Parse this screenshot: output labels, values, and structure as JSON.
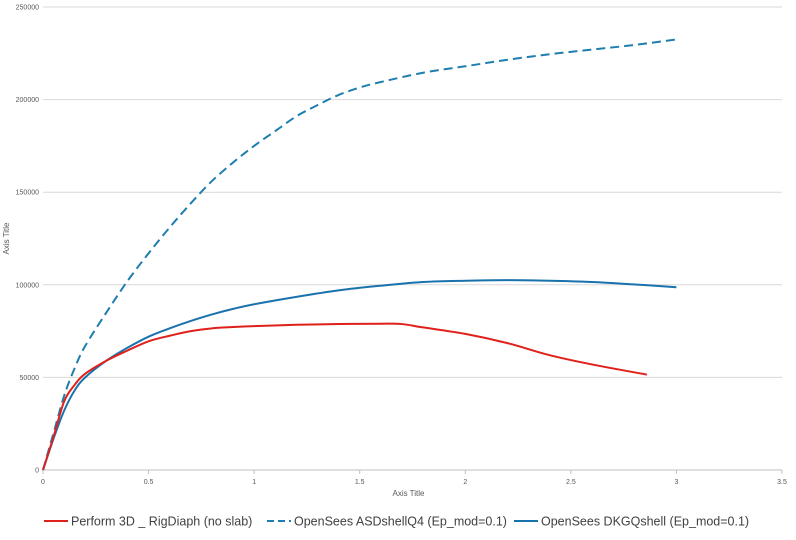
{
  "chart_data": {
    "type": "line",
    "title": "",
    "xlabel": "Axis Title",
    "ylabel": "Axis Title",
    "xlim": [
      0,
      3.5
    ],
    "ylim": [
      0,
      250000
    ],
    "xticks": [
      0,
      0.5,
      1,
      1.5,
      2,
      2.5,
      3,
      3.5
    ],
    "xtick_labels": [
      "0",
      "0.5",
      "1",
      "1.5",
      "2",
      "2.5",
      "3",
      "3.5"
    ],
    "yticks": [
      0,
      50000,
      100000,
      150000,
      200000,
      250000
    ],
    "ytick_labels": [
      "0",
      "50000",
      "100000",
      "150000",
      "200000",
      "250000"
    ],
    "grid": "horizontal",
    "legend_position": "bottom",
    "series": [
      {
        "name": "Perform 3D _ RigDiaph (no slab)",
        "color": "#e0201b",
        "dash": "solid",
        "x": [
          0,
          0.05,
          0.1,
          0.15,
          0.2,
          0.3,
          0.4,
          0.5,
          0.6,
          0.7,
          0.8,
          0.9,
          1.0,
          1.2,
          1.4,
          1.6,
          1.7,
          1.8,
          2.0,
          2.2,
          2.4,
          2.6,
          2.86
        ],
        "y": [
          0,
          18000,
          37000,
          46000,
          52000,
          59000,
          64500,
          69500,
          72500,
          75000,
          76500,
          77200,
          77700,
          78400,
          78800,
          79000,
          78800,
          77000,
          73500,
          68500,
          62000,
          57000,
          51500
        ]
      },
      {
        "name": "OpenSees ASDshellQ4 (Ep_mod=0.1)",
        "color": "#1f7eb0",
        "dash": "dashed",
        "x": [
          0,
          0.05,
          0.1,
          0.15,
          0.2,
          0.3,
          0.4,
          0.5,
          0.6,
          0.7,
          0.8,
          0.9,
          1.0,
          1.1,
          1.2,
          1.3,
          1.4,
          1.5,
          1.6,
          1.8,
          2.0,
          2.2,
          2.4,
          2.6,
          2.8,
          3.0
        ],
        "y": [
          0,
          20000,
          40000,
          55000,
          67000,
          85000,
          102000,
          117000,
          131000,
          144000,
          156000,
          166000,
          175000,
          183000,
          191000,
          197000,
          202500,
          206500,
          209500,
          214500,
          218000,
          221500,
          224500,
          227000,
          229500,
          232500
        ]
      },
      {
        "name": "OpenSees DKGQshell (Ep_mod=0.1)",
        "color": "#1a72ad",
        "dash": "solid",
        "x": [
          0,
          0.05,
          0.1,
          0.15,
          0.2,
          0.3,
          0.4,
          0.5,
          0.6,
          0.7,
          0.8,
          0.9,
          1.0,
          1.2,
          1.4,
          1.6,
          1.8,
          2.0,
          2.2,
          2.4,
          2.6,
          2.8,
          3.0
        ],
        "y": [
          0,
          17000,
          32000,
          43000,
          50000,
          59000,
          66000,
          72000,
          76500,
          80500,
          84000,
          87000,
          89500,
          93500,
          97000,
          99500,
          101500,
          102200,
          102500,
          102200,
          101500,
          100200,
          98700
        ]
      }
    ]
  }
}
